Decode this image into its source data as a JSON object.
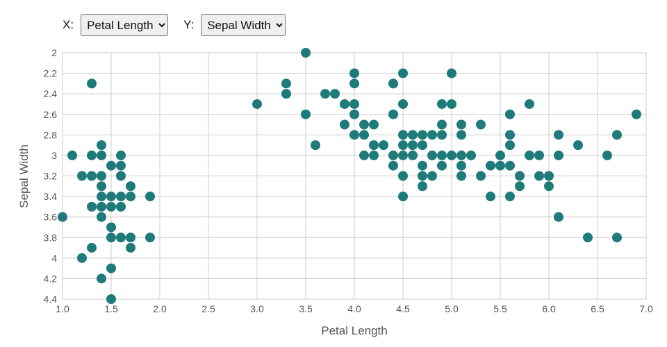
{
  "controls": {
    "x_label": "X:",
    "y_label": "Y:",
    "x_selected": "Petal Length",
    "y_selected": "Sepal Width"
  },
  "chart_data": {
    "type": "scatter",
    "xlabel": "Petal Length",
    "ylabel": "Sepal Width",
    "xlim": [
      1.0,
      7.0
    ],
    "ylim": [
      2.0,
      4.4
    ],
    "y_inverted": true,
    "xticks": [
      "1.0",
      "1.5",
      "2.0",
      "2.5",
      "3.0",
      "3.5",
      "4.0",
      "4.5",
      "5.0",
      "5.5",
      "6.0",
      "6.5",
      "7.0"
    ],
    "yticks": [
      "2",
      "2.2",
      "2.4",
      "2.6",
      "2.8",
      "3",
      "3.2",
      "3.4",
      "3.6",
      "3.8",
      "4",
      "4.2",
      "4.4"
    ],
    "grid": true,
    "point_color": "#1f7a7a",
    "points": [
      [
        1.0,
        3.6
      ],
      [
        1.1,
        3.0
      ],
      [
        1.2,
        3.2
      ],
      [
        1.2,
        4.0
      ],
      [
        1.3,
        2.3
      ],
      [
        1.3,
        3.0
      ],
      [
        1.3,
        3.2
      ],
      [
        1.3,
        3.5
      ],
      [
        1.3,
        3.9
      ],
      [
        1.4,
        2.9
      ],
      [
        1.4,
        3.0
      ],
      [
        1.4,
        3.2
      ],
      [
        1.4,
        3.3
      ],
      [
        1.4,
        3.4
      ],
      [
        1.4,
        3.5
      ],
      [
        1.4,
        3.6
      ],
      [
        1.4,
        4.2
      ],
      [
        1.5,
        3.1
      ],
      [
        1.5,
        3.4
      ],
      [
        1.5,
        3.5
      ],
      [
        1.5,
        3.7
      ],
      [
        1.5,
        3.8
      ],
      [
        1.5,
        4.1
      ],
      [
        1.5,
        4.4
      ],
      [
        1.6,
        3.0
      ],
      [
        1.6,
        3.1
      ],
      [
        1.6,
        3.2
      ],
      [
        1.6,
        3.4
      ],
      [
        1.6,
        3.5
      ],
      [
        1.6,
        3.8
      ],
      [
        1.7,
        3.3
      ],
      [
        1.7,
        3.4
      ],
      [
        1.7,
        3.8
      ],
      [
        1.7,
        3.9
      ],
      [
        1.9,
        3.4
      ],
      [
        1.9,
        3.8
      ],
      [
        3.0,
        2.5
      ],
      [
        3.3,
        2.3
      ],
      [
        3.3,
        2.4
      ],
      [
        3.5,
        2.0
      ],
      [
        3.5,
        2.6
      ],
      [
        3.6,
        2.9
      ],
      [
        3.7,
        2.4
      ],
      [
        3.8,
        2.4
      ],
      [
        3.9,
        2.5
      ],
      [
        3.9,
        2.7
      ],
      [
        4.0,
        2.2
      ],
      [
        4.0,
        2.3
      ],
      [
        4.0,
        2.5
      ],
      [
        4.0,
        2.6
      ],
      [
        4.0,
        2.8
      ],
      [
        4.1,
        2.7
      ],
      [
        4.1,
        2.8
      ],
      [
        4.1,
        3.0
      ],
      [
        4.2,
        2.7
      ],
      [
        4.2,
        2.9
      ],
      [
        4.2,
        3.0
      ],
      [
        4.3,
        2.9
      ],
      [
        4.4,
        2.3
      ],
      [
        4.4,
        2.6
      ],
      [
        4.4,
        3.0
      ],
      [
        4.4,
        3.1
      ],
      [
        4.5,
        2.2
      ],
      [
        4.5,
        2.5
      ],
      [
        4.5,
        2.8
      ],
      [
        4.5,
        2.9
      ],
      [
        4.5,
        3.0
      ],
      [
        4.5,
        3.2
      ],
      [
        4.5,
        3.4
      ],
      [
        4.6,
        2.8
      ],
      [
        4.6,
        2.9
      ],
      [
        4.6,
        3.0
      ],
      [
        4.7,
        2.8
      ],
      [
        4.7,
        2.9
      ],
      [
        4.7,
        3.1
      ],
      [
        4.7,
        3.2
      ],
      [
        4.7,
        3.3
      ],
      [
        4.8,
        2.8
      ],
      [
        4.8,
        3.0
      ],
      [
        4.8,
        3.2
      ],
      [
        4.9,
        2.5
      ],
      [
        4.9,
        2.7
      ],
      [
        4.9,
        2.8
      ],
      [
        4.9,
        3.0
      ],
      [
        4.9,
        3.1
      ],
      [
        5.0,
        2.2
      ],
      [
        5.0,
        2.5
      ],
      [
        5.0,
        3.0
      ],
      [
        5.1,
        2.7
      ],
      [
        5.1,
        2.8
      ],
      [
        5.1,
        3.0
      ],
      [
        5.1,
        3.1
      ],
      [
        5.1,
        3.2
      ],
      [
        5.2,
        3.0
      ],
      [
        5.3,
        2.7
      ],
      [
        5.3,
        3.2
      ],
      [
        5.4,
        3.1
      ],
      [
        5.4,
        3.4
      ],
      [
        5.5,
        3.0
      ],
      [
        5.5,
        3.1
      ],
      [
        5.6,
        2.6
      ],
      [
        5.6,
        2.8
      ],
      [
        5.6,
        2.9
      ],
      [
        5.6,
        3.1
      ],
      [
        5.6,
        3.4
      ],
      [
        5.7,
        3.2
      ],
      [
        5.7,
        3.3
      ],
      [
        5.8,
        2.5
      ],
      [
        5.8,
        3.0
      ],
      [
        5.9,
        3.0
      ],
      [
        5.9,
        3.2
      ],
      [
        6.0,
        3.2
      ],
      [
        6.0,
        3.3
      ],
      [
        6.1,
        2.8
      ],
      [
        6.1,
        3.0
      ],
      [
        6.1,
        3.6
      ],
      [
        6.3,
        2.9
      ],
      [
        6.4,
        3.8
      ],
      [
        6.6,
        3.0
      ],
      [
        6.7,
        2.8
      ],
      [
        6.7,
        3.8
      ],
      [
        6.9,
        2.6
      ]
    ]
  }
}
